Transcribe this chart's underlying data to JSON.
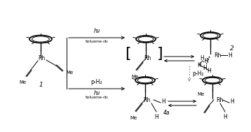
{
  "bg_color": "#ffffff",
  "line_color": "#000000",
  "figsize": [
    3.58,
    1.89
  ],
  "dpi": 100,
  "lw": 0.7,
  "fs_label": 5.5,
  "fs_tiny": 4.5,
  "fs_bracket": 14,
  "compound1_label": "1",
  "compound2_label": "2",
  "compound4a_label": "4a",
  "hv_label": "hν",
  "toluene_label": "toluene-d₈",
  "pH2_label": "p-H₂"
}
